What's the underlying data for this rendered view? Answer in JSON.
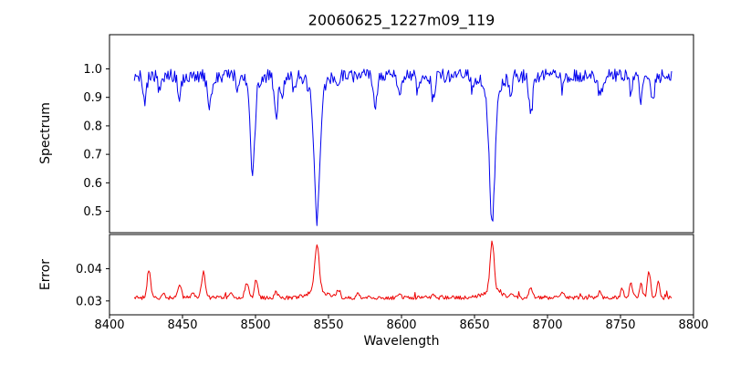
{
  "chart_data": {
    "type": "line",
    "title": "20060625_1227m09_119",
    "xlabel": "Wavelength",
    "grid": false,
    "legend": "none",
    "x_axis": {
      "range": [
        8400,
        8800
      ],
      "tick_values": [
        8400,
        8450,
        8500,
        8550,
        8600,
        8650,
        8700,
        8750,
        8800
      ],
      "tick_labels": [
        "8400",
        "8450",
        "8500",
        "8550",
        "8600",
        "8650",
        "8700",
        "8750",
        "8800"
      ]
    },
    "panels": [
      {
        "name": "spectrum",
        "ylabel": "Spectrum",
        "y_range": [
          0.425,
          1.12
        ],
        "tick_values": [
          1.0,
          0.9,
          0.8,
          0.7,
          0.6,
          0.5
        ],
        "tick_labels": [
          "1.0",
          "0.9",
          "0.8",
          "0.7",
          "0.6",
          "0.5"
        ],
        "line_color": "#0000ee"
      },
      {
        "name": "error",
        "ylabel": "Error",
        "y_range": [
          0.0257,
          0.0506
        ],
        "tick_values": [
          0.04,
          0.03
        ],
        "tick_labels": [
          "0.04",
          "0.03"
        ],
        "line_color": "#ee0000"
      }
    ],
    "spectrum_model": {
      "x_start": 8417,
      "x_end": 8785,
      "n_points": 560,
      "continuum": 0.975,
      "noise_amplitude": 0.024,
      "absorption_lines": [
        {
          "center": 8498.0,
          "depth": 0.3,
          "sigma": 1.5,
          "wing_depth": 0.04,
          "wing_sigma": 4
        },
        {
          "center": 8542.1,
          "depth": 0.44,
          "sigma": 1.8,
          "wing_depth": 0.07,
          "wing_sigma": 5
        },
        {
          "center": 8662.1,
          "depth": 0.44,
          "sigma": 1.8,
          "wing_depth": 0.07,
          "wing_sigma": 5
        },
        {
          "center": 8424.1,
          "depth": 0.09,
          "sigma": 1.2
        },
        {
          "center": 8434.0,
          "depth": 0.05,
          "sigma": 1.0
        },
        {
          "center": 8447.9,
          "depth": 0.07,
          "sigma": 1.1
        },
        {
          "center": 8468.4,
          "depth": 0.12,
          "sigma": 1.3
        },
        {
          "center": 8488.1,
          "depth": 0.05,
          "sigma": 1.0
        },
        {
          "center": 8514.1,
          "depth": 0.14,
          "sigma": 1.2
        },
        {
          "center": 8518.1,
          "depth": 0.07,
          "sigma": 1.0
        },
        {
          "center": 8526.7,
          "depth": 0.06,
          "sigma": 1.0
        },
        {
          "center": 8556.8,
          "depth": 0.05,
          "sigma": 1.0
        },
        {
          "center": 8582.3,
          "depth": 0.1,
          "sigma": 1.2
        },
        {
          "center": 8598.8,
          "depth": 0.09,
          "sigma": 1.1
        },
        {
          "center": 8611.0,
          "depth": 0.05,
          "sigma": 1.0
        },
        {
          "center": 8621.6,
          "depth": 0.08,
          "sigma": 1.1
        },
        {
          "center": 8648.5,
          "depth": 0.05,
          "sigma": 1.0
        },
        {
          "center": 8674.7,
          "depth": 0.06,
          "sigma": 1.0
        },
        {
          "center": 8688.6,
          "depth": 0.14,
          "sigma": 1.3
        },
        {
          "center": 8710.4,
          "depth": 0.05,
          "sigma": 1.0
        },
        {
          "center": 8736.0,
          "depth": 0.07,
          "sigma": 1.1
        },
        {
          "center": 8757.2,
          "depth": 0.06,
          "sigma": 1.0
        },
        {
          "center": 8764.0,
          "depth": 0.08,
          "sigma": 1.0
        },
        {
          "center": 8772.1,
          "depth": 0.09,
          "sigma": 1.1
        }
      ]
    },
    "error_model": {
      "x_start": 8417,
      "x_end": 8785,
      "n_points": 560,
      "baseline": 0.031,
      "noise_amplitude": 0.0006,
      "peaks": [
        {
          "center": 8427.0,
          "height": 0.0085,
          "sigma": 1.2
        },
        {
          "center": 8437.0,
          "height": 0.0018,
          "sigma": 1.0
        },
        {
          "center": 8448.0,
          "height": 0.0045,
          "sigma": 1.1
        },
        {
          "center": 8457.0,
          "height": 0.0018,
          "sigma": 1.0
        },
        {
          "center": 8464.4,
          "height": 0.008,
          "sigma": 1.2
        },
        {
          "center": 8483.0,
          "height": 0.0018,
          "sigma": 1.0
        },
        {
          "center": 8494.0,
          "height": 0.0048,
          "sigma": 1.2
        },
        {
          "center": 8500.5,
          "height": 0.0055,
          "sigma": 1.2
        },
        {
          "center": 8514.1,
          "height": 0.002,
          "sigma": 1.0
        },
        {
          "center": 8542.1,
          "height": 0.0145,
          "sigma": 1.5
        },
        {
          "center": 8542.1,
          "height": 0.0022,
          "sigma": 6.0
        },
        {
          "center": 8556.8,
          "height": 0.0025,
          "sigma": 1.2
        },
        {
          "center": 8570.0,
          "height": 0.0015,
          "sigma": 1.0
        },
        {
          "center": 8598.8,
          "height": 0.0015,
          "sigma": 1.0
        },
        {
          "center": 8621.6,
          "height": 0.0013,
          "sigma": 1.0
        },
        {
          "center": 8662.1,
          "height": 0.0152,
          "sigma": 1.4
        },
        {
          "center": 8662.1,
          "height": 0.0022,
          "sigma": 6.0
        },
        {
          "center": 8676.0,
          "height": 0.0013,
          "sigma": 1.0
        },
        {
          "center": 8688.6,
          "height": 0.0028,
          "sigma": 1.2
        },
        {
          "center": 8710.4,
          "height": 0.0013,
          "sigma": 1.0
        },
        {
          "center": 8736.0,
          "height": 0.0018,
          "sigma": 1.0
        },
        {
          "center": 8751.0,
          "height": 0.0028,
          "sigma": 1.0
        },
        {
          "center": 8757.2,
          "height": 0.0045,
          "sigma": 1.1
        },
        {
          "center": 8764.0,
          "height": 0.0042,
          "sigma": 1.0
        },
        {
          "center": 8769.5,
          "height": 0.0082,
          "sigma": 1.1
        },
        {
          "center": 8776.0,
          "height": 0.005,
          "sigma": 1.0
        }
      ]
    }
  }
}
